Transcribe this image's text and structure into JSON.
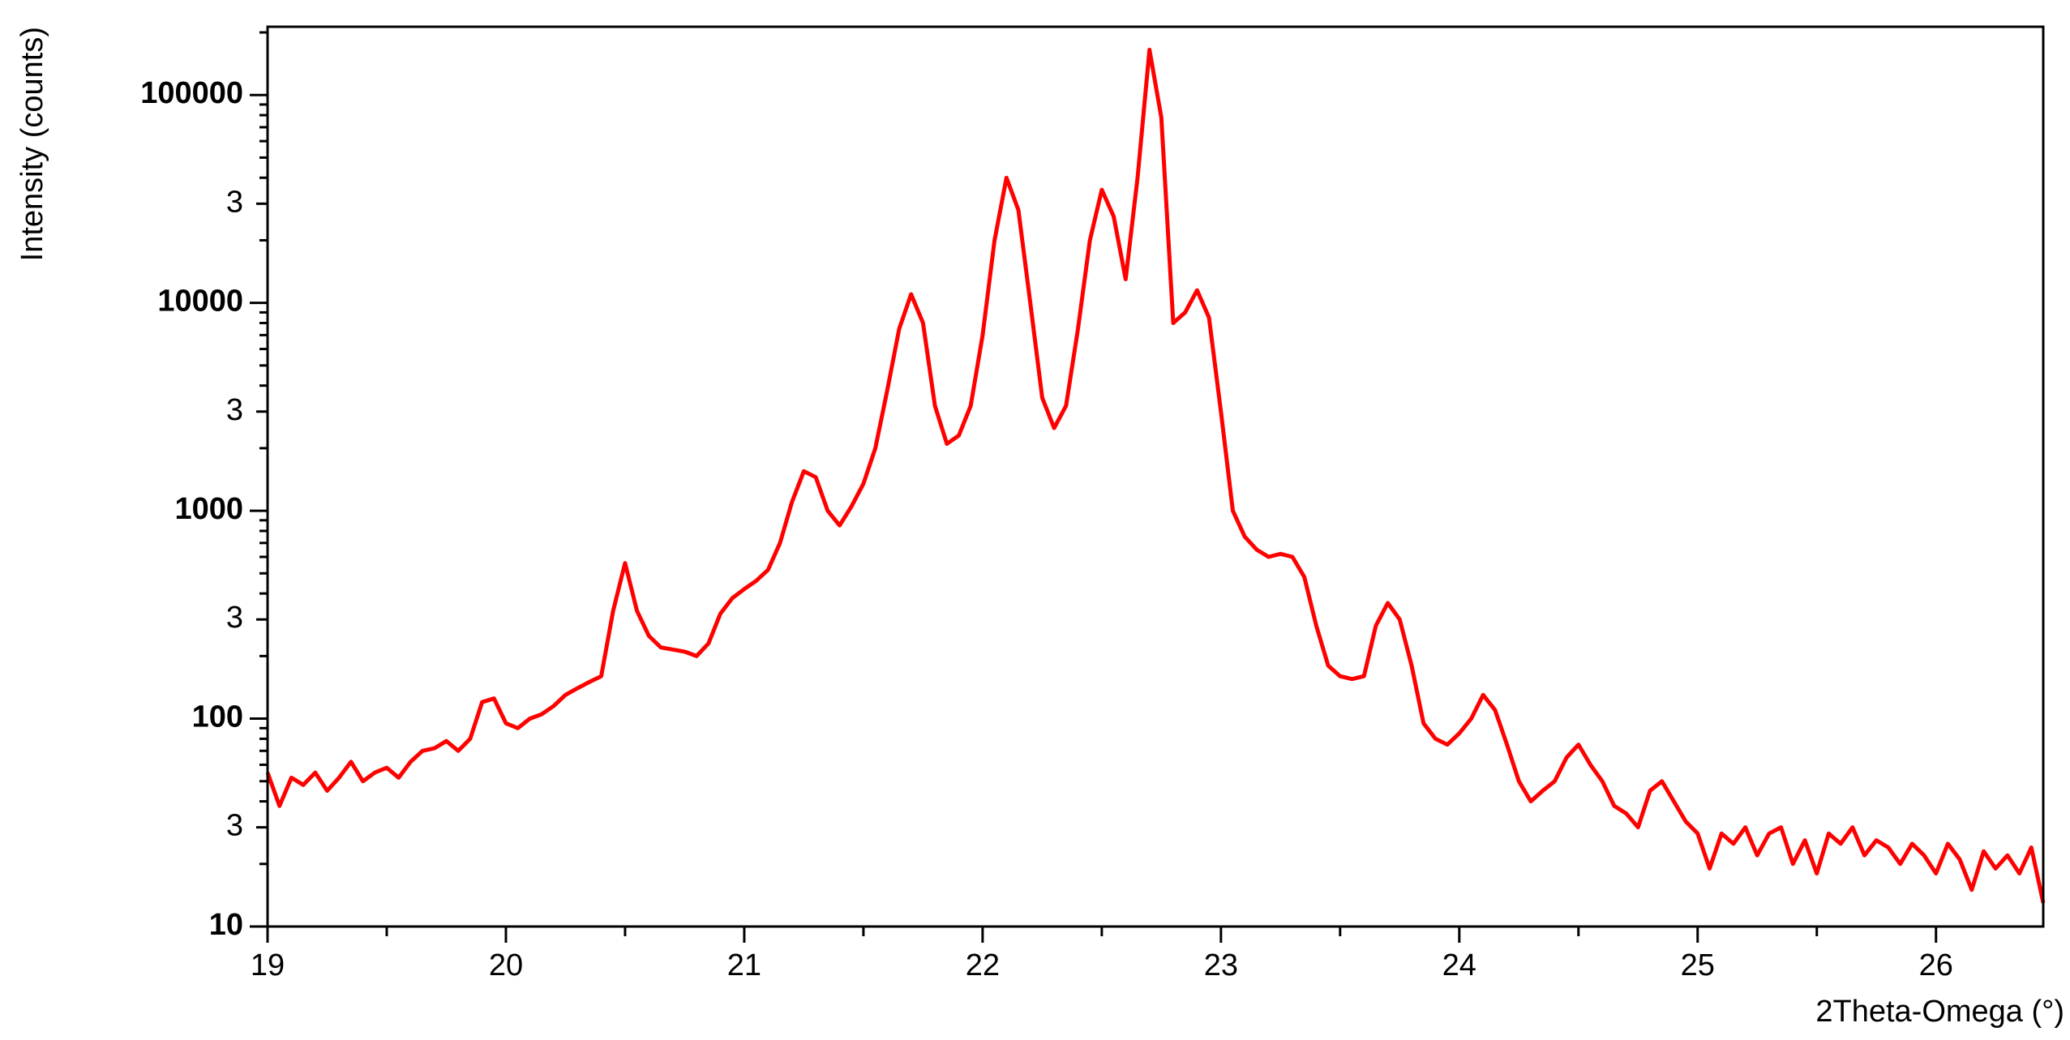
{
  "chart_data": {
    "type": "line",
    "x_label": "2Theta-Omega (°)",
    "y_label": "Intensity (counts)",
    "log_y": true,
    "xlim": [
      19,
      26.45
    ],
    "ylim": [
      10,
      213000
    ],
    "xticks": [
      19,
      20,
      21,
      22,
      23,
      24,
      25,
      26
    ],
    "xminorticks": [
      19.5,
      20.5,
      21.5,
      22.5,
      23.5,
      24.5,
      25.5
    ],
    "yticks": [
      10,
      {
        "value": 30,
        "label": "3"
      },
      100,
      {
        "value": 300,
        "label": "3"
      },
      1000,
      {
        "value": 3000,
        "label": "3"
      },
      10000,
      {
        "value": 30000,
        "label": "3"
      },
      100000
    ],
    "yminorticks": [
      20,
      40,
      50,
      60,
      70,
      80,
      90,
      200,
      400,
      500,
      600,
      700,
      800,
      900,
      2000,
      4000,
      5000,
      6000,
      7000,
      8000,
      9000,
      20000,
      40000,
      50000,
      60000,
      70000,
      80000,
      90000,
      200000
    ],
    "x": [
      19.0,
      19.05,
      19.1,
      19.15,
      19.2,
      19.25,
      19.3,
      19.35,
      19.4,
      19.45,
      19.5,
      19.55,
      19.6,
      19.65,
      19.7,
      19.75,
      19.8,
      19.85,
      19.9,
      19.95,
      20.0,
      20.05,
      20.1,
      20.15,
      20.2,
      20.25,
      20.3,
      20.35,
      20.4,
      20.45,
      20.5,
      20.55,
      20.6,
      20.65,
      20.7,
      20.75,
      20.8,
      20.85,
      20.9,
      20.95,
      21.0,
      21.05,
      21.1,
      21.15,
      21.2,
      21.25,
      21.3,
      21.35,
      21.4,
      21.45,
      21.5,
      21.55,
      21.6,
      21.65,
      21.7,
      21.75,
      21.8,
      21.85,
      21.9,
      21.95,
      22.0,
      22.05,
      22.1,
      22.15,
      22.2,
      22.25,
      22.3,
      22.35,
      22.4,
      22.45,
      22.5,
      22.55,
      22.6,
      22.65,
      22.7,
      22.75,
      22.8,
      22.85,
      22.9,
      22.95,
      23.0,
      23.05,
      23.1,
      23.15,
      23.2,
      23.25,
      23.3,
      23.35,
      23.4,
      23.45,
      23.5,
      23.55,
      23.6,
      23.65,
      23.7,
      23.75,
      23.8,
      23.85,
      23.9,
      23.95,
      24.0,
      24.05,
      24.1,
      24.15,
      24.2,
      24.25,
      24.3,
      24.35,
      24.4,
      24.45,
      24.5,
      24.55,
      24.6,
      24.65,
      24.7,
      24.75,
      24.8,
      24.85,
      24.9,
      24.95,
      25.0,
      25.05,
      25.1,
      25.15,
      25.2,
      25.25,
      25.3,
      25.35,
      25.4,
      25.45,
      25.5,
      25.55,
      25.6,
      25.65,
      25.7,
      25.75,
      25.8,
      25.85,
      25.9,
      25.95,
      26.0,
      26.05,
      26.1,
      26.15,
      26.2,
      26.25,
      26.3,
      26.35,
      26.4,
      26.45
    ],
    "series": [
      {
        "color": "#ff0000",
        "values": [
          55,
          38,
          52,
          48,
          55,
          45,
          52,
          62,
          50,
          55,
          58,
          52,
          62,
          70,
          72,
          78,
          70,
          80,
          120,
          125,
          95,
          90,
          100,
          105,
          115,
          130,
          140,
          150,
          160,
          330,
          560,
          330,
          250,
          220,
          215,
          210,
          200,
          230,
          320,
          380,
          420,
          460,
          520,
          700,
          1100,
          1550,
          1450,
          1000,
          850,
          1050,
          1350,
          2000,
          3800,
          7500,
          11000,
          8000,
          3200,
          2100,
          2300,
          3200,
          7000,
          20000,
          40000,
          28000,
          10000,
          3500,
          2500,
          3200,
          7500,
          20000,
          35000,
          26000,
          13000,
          40000,
          165000,
          78000,
          8000,
          9000,
          11500,
          8500,
          3000,
          1000,
          750,
          650,
          600,
          620,
          600,
          480,
          280,
          180,
          160,
          155,
          160,
          280,
          360,
          300,
          180,
          95,
          80,
          75,
          85,
          100,
          130,
          110,
          75,
          50,
          40,
          45,
          50,
          65,
          75,
          60,
          50,
          38,
          35,
          30,
          45,
          50,
          40,
          32,
          28,
          19,
          28,
          25,
          30,
          22,
          28,
          30,
          20,
          26,
          18,
          28,
          25,
          30,
          22,
          26,
          24,
          20,
          25,
          22,
          18,
          25,
          21,
          15,
          23,
          19,
          22,
          18,
          24,
          13
        ]
      }
    ]
  }
}
